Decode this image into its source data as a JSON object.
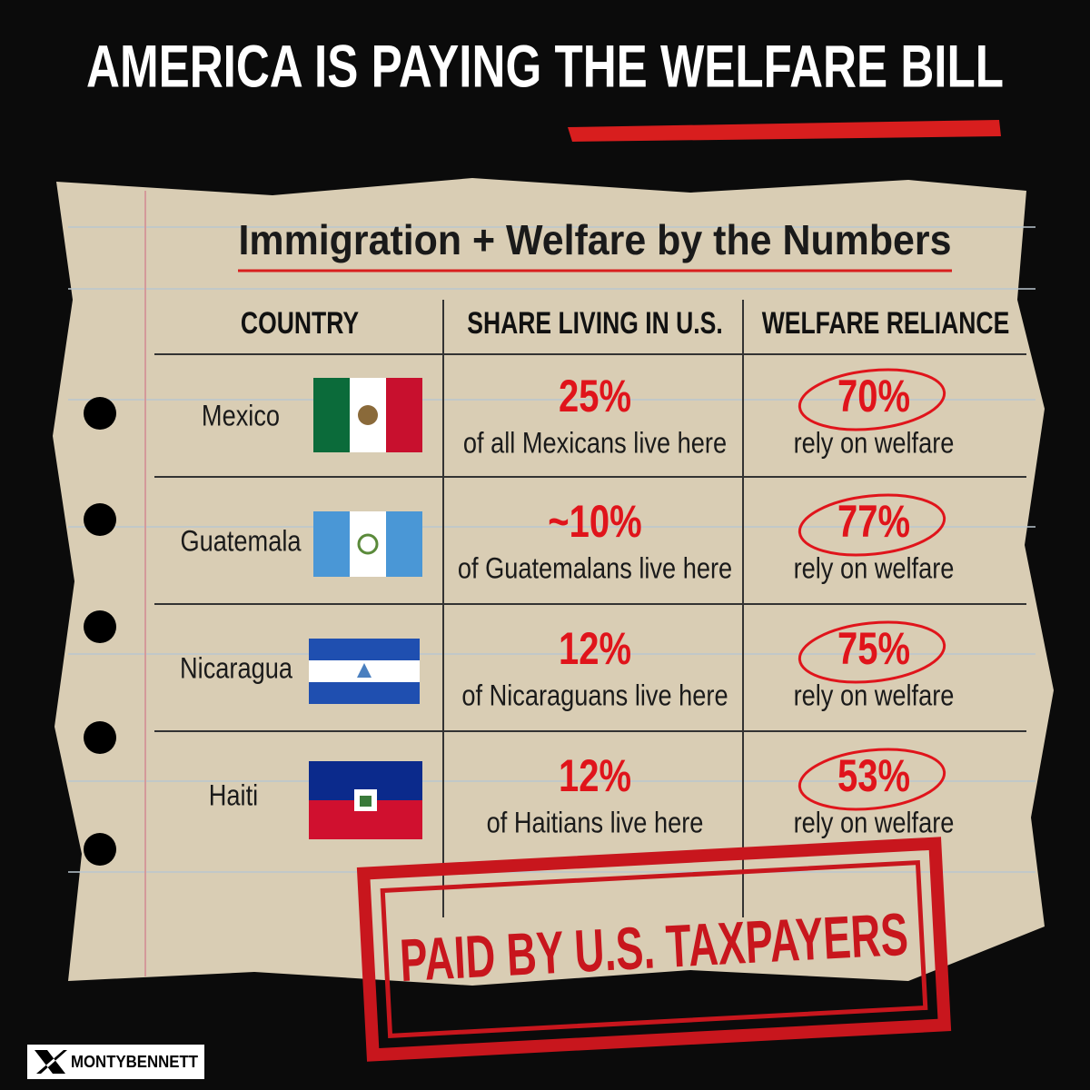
{
  "header": {
    "title": "AMERICA IS PAYING THE WELFARE BILL"
  },
  "table": {
    "subtitle": "Immigration + Welfare by the Numbers",
    "columns": [
      "COUNTRY",
      "SHARE LIVING IN U.S.",
      "WELFARE RELIANCE"
    ],
    "rows": [
      {
        "country": "Mexico",
        "share": "25%",
        "share_note": "of all Mexicans live here",
        "reliance": "70%",
        "reliance_note": "rely on welfare"
      },
      {
        "country": "Guatemala",
        "share": "~10%",
        "share_note": "of Guatemalans live here",
        "reliance": "77%",
        "reliance_note": "rely on welfare"
      },
      {
        "country": "Nicaragua",
        "share": "12%",
        "share_note": "of Nicaraguans live here",
        "reliance": "75%",
        "reliance_note": "rely on welfare"
      },
      {
        "country": "Haiti",
        "share": "12%",
        "share_note": "of Haitians live here",
        "reliance": "53%",
        "reliance_note": "rely on welfare"
      }
    ]
  },
  "stamp": "PAID BY U.S. TAXPAYERS",
  "footer": {
    "handle": "MONTYBENNETT"
  }
}
